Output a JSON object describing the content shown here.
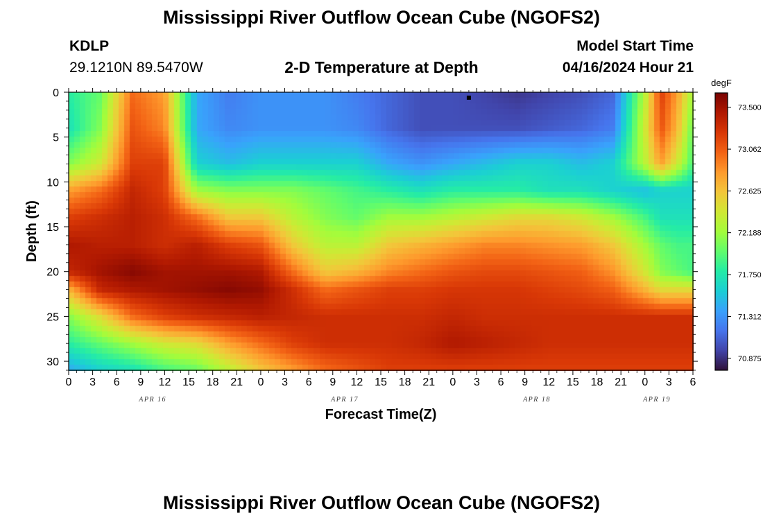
{
  "page": {
    "title": "Mississippi River Outflow Ocean Cube (NGOFS2)",
    "footer_title": "Mississippi River Outflow Ocean Cube (NGOFS2)"
  },
  "header": {
    "station": "KDLP",
    "coords": "29.1210N  89.5470W",
    "plot_title": "2-D Temperature at Depth",
    "model_label": "Model Start Time",
    "model_time": "04/16/2024 Hour 21"
  },
  "chart_data": {
    "type": "heatmap",
    "title": "2-D Temperature at Depth",
    "xlabel": "Forecast Time(Z)",
    "ylabel": "Depth (ft)",
    "x_hours_range": [
      0,
      78
    ],
    "y_range": [
      0,
      31
    ],
    "y_inverted": true,
    "x_tick_labels": [
      "0",
      "3",
      "6",
      "9",
      "12",
      "15",
      "18",
      "21",
      "0",
      "3",
      "6",
      "9",
      "12",
      "15",
      "18",
      "21",
      "0",
      "3",
      "6",
      "9",
      "12",
      "15",
      "18",
      "21",
      "0",
      "3",
      "6"
    ],
    "y_ticks": [
      0,
      5,
      10,
      15,
      20,
      25,
      30
    ],
    "date_labels": [
      {
        "label": "APR 16",
        "hour": 10.5
      },
      {
        "label": "APR 17",
        "hour": 34.5
      },
      {
        "label": "APR 18",
        "hour": 58.5
      },
      {
        "label": "APR 19",
        "hour": 73.5
      }
    ],
    "colorbar": {
      "units": "degF",
      "ticks": [
        "73.500",
        "73.062",
        "72.625",
        "72.188",
        "71.750",
        "71.312",
        "70.875"
      ],
      "range": [
        70.75,
        73.65
      ],
      "colormap": [
        "#30123b",
        "#4145ab",
        "#4675ed",
        "#39a2fc",
        "#1bcfd4",
        "#24eca6",
        "#61fc6c",
        "#a4fc3b",
        "#d1e834",
        "#f3c63a",
        "#fe9b2d",
        "#f36315",
        "#d93806",
        "#b11901",
        "#7a0402"
      ]
    },
    "field_depths_ft": [
      0,
      4,
      8,
      11,
      14,
      17,
      20,
      22,
      25,
      28,
      31
    ],
    "field_hours": [
      0,
      4,
      8,
      12,
      16,
      20,
      24,
      28,
      32,
      36,
      40,
      44,
      48,
      52,
      56,
      60,
      64,
      68,
      72,
      74,
      76,
      78
    ],
    "temperature_degF": [
      [
        71.8,
        72.0,
        73.0,
        72.8,
        71.4,
        71.2,
        71.3,
        71.3,
        71.3,
        71.2,
        71.1,
        71.0,
        71.0,
        70.95,
        70.9,
        70.95,
        71.0,
        71.1,
        72.3,
        73.2,
        72.8,
        72.2
      ],
      [
        71.7,
        72.1,
        73.1,
        72.9,
        71.4,
        71.25,
        71.3,
        71.3,
        71.3,
        71.25,
        71.1,
        71.0,
        71.0,
        71.0,
        71.0,
        71.05,
        71.1,
        71.2,
        72.4,
        73.1,
        72.7,
        72.0
      ],
      [
        72.1,
        72.4,
        73.2,
        73.2,
        71.6,
        71.5,
        71.6,
        71.6,
        71.6,
        71.6,
        71.4,
        71.3,
        71.4,
        71.5,
        71.6,
        71.6,
        71.5,
        71.6,
        72.3,
        72.8,
        72.4,
        71.9
      ],
      [
        72.8,
        73.0,
        73.35,
        73.2,
        72.2,
        72.1,
        72.1,
        72.1,
        72.0,
        71.9,
        71.8,
        71.7,
        71.8,
        71.8,
        71.8,
        71.7,
        71.7,
        71.6,
        71.5,
        71.6,
        71.6,
        71.6
      ],
      [
        73.2,
        73.3,
        73.4,
        73.3,
        73.0,
        72.6,
        72.6,
        72.3,
        72.1,
        72.0,
        72.2,
        72.2,
        72.3,
        72.4,
        72.5,
        72.5,
        72.4,
        72.2,
        71.9,
        71.7,
        71.7,
        71.7
      ],
      [
        73.45,
        73.4,
        73.4,
        73.3,
        73.4,
        73.2,
        73.1,
        72.6,
        72.3,
        72.3,
        72.6,
        72.7,
        72.8,
        72.9,
        72.9,
        72.85,
        72.8,
        72.6,
        72.2,
        72.0,
        71.9,
        71.9
      ],
      [
        73.35,
        73.5,
        73.6,
        73.5,
        73.5,
        73.5,
        73.45,
        73.0,
        72.6,
        72.7,
        72.9,
        73.0,
        73.1,
        73.15,
        73.15,
        73.1,
        73.05,
        72.85,
        72.4,
        72.1,
        72.0,
        71.9
      ],
      [
        72.7,
        73.35,
        73.45,
        73.5,
        73.55,
        73.6,
        73.55,
        73.3,
        73.0,
        73.1,
        73.2,
        73.2,
        73.25,
        73.25,
        73.25,
        73.2,
        73.15,
        73.05,
        72.7,
        72.5,
        72.5,
        72.5
      ],
      [
        72.1,
        72.5,
        73.0,
        73.2,
        73.3,
        73.35,
        73.4,
        73.35,
        73.3,
        73.3,
        73.3,
        73.3,
        73.35,
        73.3,
        73.3,
        73.3,
        73.3,
        73.3,
        73.3,
        73.3,
        73.3,
        73.3
      ],
      [
        71.8,
        72.0,
        72.2,
        72.4,
        72.5,
        72.8,
        73.0,
        73.2,
        73.3,
        73.3,
        73.3,
        73.35,
        73.45,
        73.4,
        73.35,
        73.3,
        73.3,
        73.3,
        73.3,
        73.3,
        73.3,
        73.3
      ],
      [
        71.4,
        71.6,
        71.7,
        71.9,
        72.0,
        72.3,
        72.6,
        72.8,
        73.0,
        73.1,
        73.2,
        73.2,
        73.2,
        73.2,
        73.2,
        73.2,
        73.2,
        73.2,
        73.2,
        73.2,
        73.2,
        73.2
      ]
    ],
    "markers": [
      {
        "hour": 50,
        "depth_ft": 0.3
      }
    ]
  }
}
